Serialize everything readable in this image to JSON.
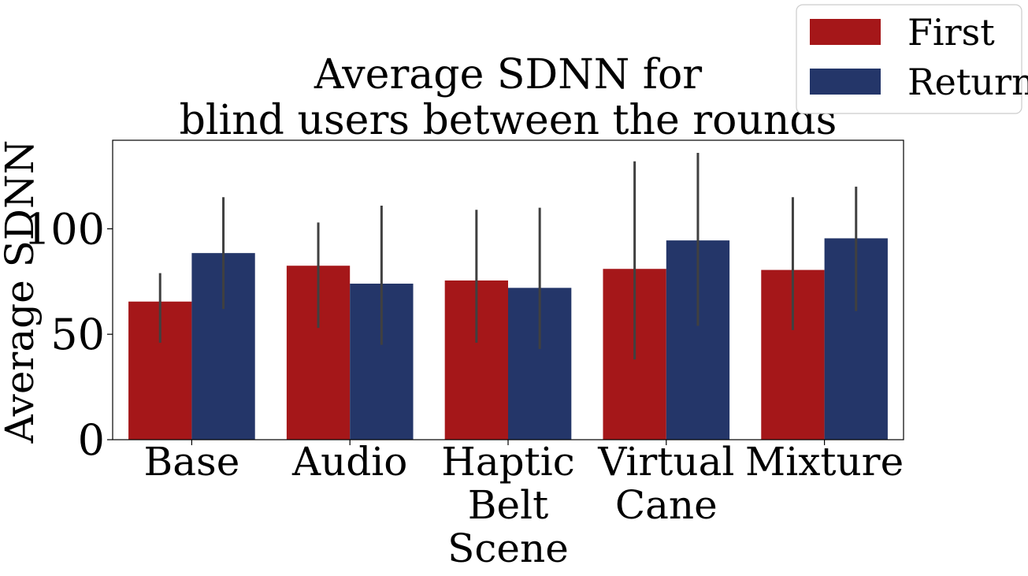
{
  "chart_data": {
    "type": "bar",
    "title": [
      "Average SDNN for",
      "blind users between the rounds"
    ],
    "xlabel": "",
    "ylabel": "Average SDNN",
    "ylim": [
      0,
      142
    ],
    "yticks": [
      0,
      50,
      100
    ],
    "grid": false,
    "legend_position": "top-right, outside plot",
    "categories": [
      [
        "Base"
      ],
      [
        "Audio"
      ],
      [
        "Haptic",
        "Belt",
        "Scene"
      ],
      [
        "Virtual",
        "Cane"
      ],
      [
        "Mixture"
      ]
    ],
    "series": [
      {
        "name": "First",
        "color": "#a51719",
        "values": [
          65.5,
          82.5,
          75.5,
          81,
          80.5
        ],
        "ci_low": [
          46,
          53,
          46,
          38,
          52
        ],
        "ci_high": [
          79,
          103,
          109,
          132,
          115
        ]
      },
      {
        "name": "Return",
        "color": "#243669",
        "values": [
          88.5,
          74,
          72,
          94.5,
          95.5
        ],
        "ci_low": [
          62,
          45,
          43,
          54,
          61
        ],
        "ci_high": [
          115,
          111,
          110,
          136,
          120
        ]
      }
    ],
    "error_bar_color": "#404040"
  }
}
